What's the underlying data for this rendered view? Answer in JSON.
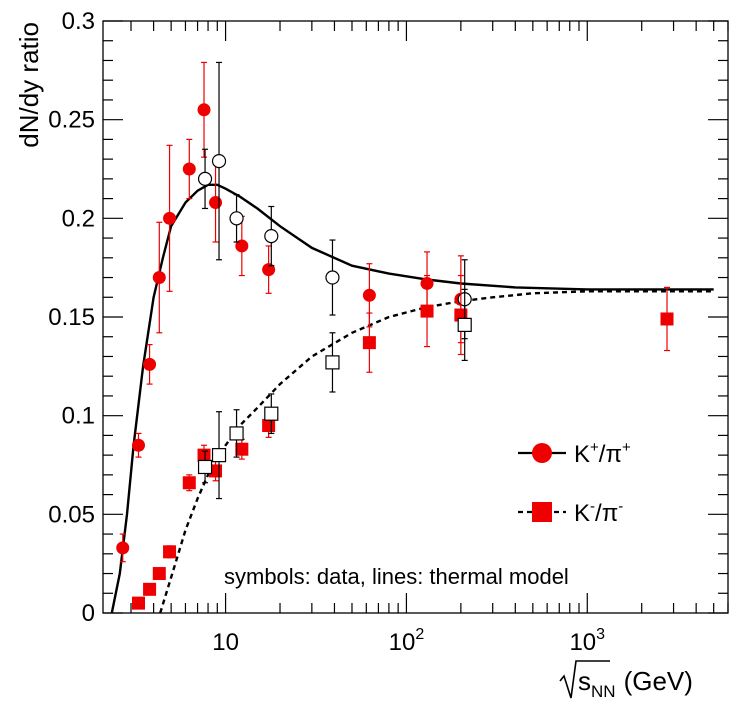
{
  "chart_data": {
    "type": "scatter",
    "title": "",
    "ylabel": "dN/dy ratio",
    "xlabel_base": "s",
    "xlabel_sub": "NN",
    "xlabel_unit": "(GeV)",
    "xscale": "log",
    "xlim": [
      2.1,
      6000
    ],
    "ylim": [
      0,
      0.3
    ],
    "yticks": [
      0,
      0.05,
      0.1,
      0.15,
      0.2,
      0.25,
      0.3
    ],
    "ytick_labels": [
      "0",
      "0.05",
      "0.1",
      "0.15",
      "0.2",
      "0.25",
      "0.3"
    ],
    "xticks": [
      {
        "value": 10,
        "label": "10",
        "exp": ""
      },
      {
        "value": 100,
        "label": "10",
        "exp": "2"
      },
      {
        "value": 1000,
        "label": "10",
        "exp": "3"
      }
    ],
    "annotation": "symbols: data, lines: thermal model",
    "legend": [
      {
        "id": "kplus",
        "base1": "K",
        "sup1": "+",
        "slash": "/",
        "base2": "π",
        "sup2": "+",
        "marker": "circle",
        "line": "solid",
        "color": "#ee0000"
      },
      {
        "id": "kminus",
        "base1": "K",
        "sup1": "-",
        "slash": "/",
        "base2": "π",
        "sup2": "-",
        "marker": "square",
        "line": "dashed",
        "color": "#ee0000"
      }
    ],
    "series": [
      {
        "name": "K+/pi+ data",
        "marker": "circle",
        "filled": true,
        "color": "#ee0000",
        "points": [
          {
            "x": 2.7,
            "y": 0.033,
            "err": 0.007
          },
          {
            "x": 3.3,
            "y": 0.085,
            "err": 0.006
          },
          {
            "x": 3.8,
            "y": 0.126,
            "err": 0.01
          },
          {
            "x": 4.3,
            "y": 0.17,
            "err": 0.028
          },
          {
            "x": 4.9,
            "y": 0.2,
            "err": 0.037
          },
          {
            "x": 6.3,
            "y": 0.225,
            "err": 0.015
          },
          {
            "x": 7.6,
            "y": 0.255,
            "err": 0.024
          },
          {
            "x": 8.8,
            "y": 0.208,
            "err": 0.02
          },
          {
            "x": 12.3,
            "y": 0.186,
            "err": 0.015
          },
          {
            "x": 17.3,
            "y": 0.174,
            "err": 0.012
          },
          {
            "x": 62.4,
            "y": 0.161,
            "err": 0.016
          },
          {
            "x": 130,
            "y": 0.167,
            "err": 0.016
          },
          {
            "x": 200,
            "y": 0.159,
            "err": 0.022
          }
        ]
      },
      {
        "name": "K+/pi+ data (open)",
        "marker": "circle",
        "filled": false,
        "color": "#000000",
        "points": [
          {
            "x": 7.7,
            "y": 0.22,
            "err": 0.015
          },
          {
            "x": 9.2,
            "y": 0.229,
            "err": 0.05
          },
          {
            "x": 11.5,
            "y": 0.2,
            "err": 0.012
          },
          {
            "x": 17.9,
            "y": 0.191,
            "err": 0.015
          },
          {
            "x": 39,
            "y": 0.17,
            "err": 0.019
          },
          {
            "x": 210,
            "y": 0.159,
            "err": 0.02
          }
        ]
      },
      {
        "name": "K-/pi- data",
        "marker": "square",
        "filled": true,
        "color": "#ee0000",
        "points": [
          {
            "x": 3.3,
            "y": 0.005,
            "err": 0.001
          },
          {
            "x": 3.8,
            "y": 0.012,
            "err": 0.002
          },
          {
            "x": 4.3,
            "y": 0.02,
            "err": 0.002
          },
          {
            "x": 4.9,
            "y": 0.031,
            "err": 0.003
          },
          {
            "x": 6.3,
            "y": 0.066,
            "err": 0.004
          },
          {
            "x": 7.6,
            "y": 0.08,
            "err": 0.005
          },
          {
            "x": 8.8,
            "y": 0.072,
            "err": 0.005
          },
          {
            "x": 12.3,
            "y": 0.083,
            "err": 0.005
          },
          {
            "x": 17.3,
            "y": 0.095,
            "err": 0.006
          },
          {
            "x": 62.4,
            "y": 0.137,
            "err": 0.015
          },
          {
            "x": 130,
            "y": 0.153,
            "err": 0.018
          },
          {
            "x": 200,
            "y": 0.151,
            "err": 0.02
          },
          {
            "x": 2760,
            "y": 0.149,
            "err": 0.016
          }
        ]
      },
      {
        "name": "K-/pi- data (open)",
        "marker": "square",
        "filled": false,
        "color": "#000000",
        "points": [
          {
            "x": 7.7,
            "y": 0.074,
            "err": 0.008
          },
          {
            "x": 9.2,
            "y": 0.08,
            "err": 0.022
          },
          {
            "x": 11.5,
            "y": 0.091,
            "err": 0.012
          },
          {
            "x": 17.9,
            "y": 0.101,
            "err": 0.01
          },
          {
            "x": 39,
            "y": 0.127,
            "err": 0.015
          },
          {
            "x": 210,
            "y": 0.146,
            "err": 0.018
          }
        ]
      }
    ],
    "lines": [
      {
        "name": "K+/pi+ thermal model",
        "style": "solid",
        "color": "#000000",
        "x": [
          2.35,
          2.6,
          2.85,
          3.1,
          3.5,
          4.0,
          4.5,
          5.0,
          6.0,
          7.0,
          8.0,
          9.0,
          10,
          12,
          15,
          20,
          30,
          50,
          80,
          130,
          200,
          400,
          1000,
          5000
        ],
        "y": [
          0.0,
          0.02,
          0.05,
          0.085,
          0.125,
          0.16,
          0.18,
          0.196,
          0.208,
          0.214,
          0.217,
          0.217,
          0.215,
          0.211,
          0.205,
          0.196,
          0.185,
          0.176,
          0.172,
          0.169,
          0.167,
          0.165,
          0.164,
          0.164
        ]
      },
      {
        "name": "K-/pi- thermal model",
        "style": "dashed",
        "color": "#000000",
        "x": [
          4.35,
          5.0,
          6.0,
          7.0,
          8.0,
          10,
          12,
          15,
          20,
          30,
          50,
          80,
          130,
          200,
          300,
          500,
          1000,
          5000
        ],
        "y": [
          0.0,
          0.018,
          0.042,
          0.058,
          0.07,
          0.085,
          0.095,
          0.104,
          0.116,
          0.13,
          0.142,
          0.15,
          0.155,
          0.158,
          0.16,
          0.162,
          0.163,
          0.163
        ]
      }
    ]
  }
}
